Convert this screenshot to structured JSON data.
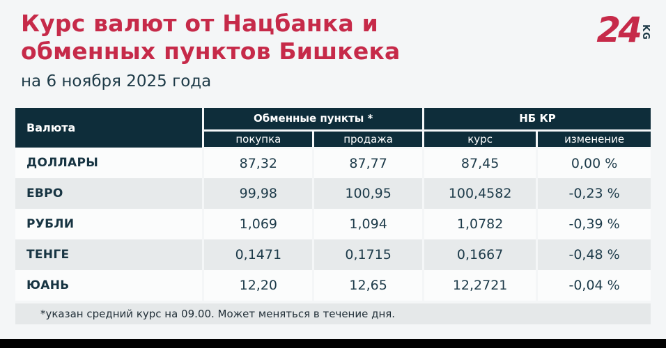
{
  "header": {
    "title_line1": "Курс валют от Нацбанка и",
    "title_line2": "обменных пунктов Бишкека",
    "subtitle": "на 6 ноября 2025 года"
  },
  "logo": {
    "number": "24",
    "suffix": "KG"
  },
  "colors": {
    "accent_red": "#c62a49",
    "header_bg": "#0e2d3a",
    "row_alt": "#e7eaeb",
    "text_dark": "#1c3a49",
    "page_bg": "#f4f6f7"
  },
  "chart_data": {
    "type": "table",
    "title": "Курс валют от Нацбанка и обменных пунктов Бишкека",
    "subtitle": "на 6 ноября 2025 года",
    "column_groups": [
      "Обменные пункты *",
      "НБ КР"
    ],
    "columns": [
      "Валюта",
      "покупка",
      "продажа",
      "курс",
      "изменение"
    ],
    "rows": [
      {
        "currency": "ДОЛЛАРЫ",
        "buy": "87,32",
        "sell": "87,77",
        "nbkr_rate": "87,45",
        "nbkr_change": "0,00 %"
      },
      {
        "currency": "ЕВРО",
        "buy": "99,98",
        "sell": "100,95",
        "nbkr_rate": "100,4582",
        "nbkr_change": "-0,23 %"
      },
      {
        "currency": "РУБЛИ",
        "buy": "1,069",
        "sell": "1,094",
        "nbkr_rate": "1,0782",
        "nbkr_change": "-0,39 %"
      },
      {
        "currency": "ТЕНГЕ",
        "buy": "0,1471",
        "sell": "0,1715",
        "nbkr_rate": "0,1667",
        "nbkr_change": "-0,48 %"
      },
      {
        "currency": "ЮАНЬ",
        "buy": "12,20",
        "sell": "12,65",
        "nbkr_rate": "12,2721",
        "nbkr_change": "-0,04 %"
      }
    ],
    "footnote": "*указан средний курс на 09.00. Может меняться в течение дня."
  }
}
